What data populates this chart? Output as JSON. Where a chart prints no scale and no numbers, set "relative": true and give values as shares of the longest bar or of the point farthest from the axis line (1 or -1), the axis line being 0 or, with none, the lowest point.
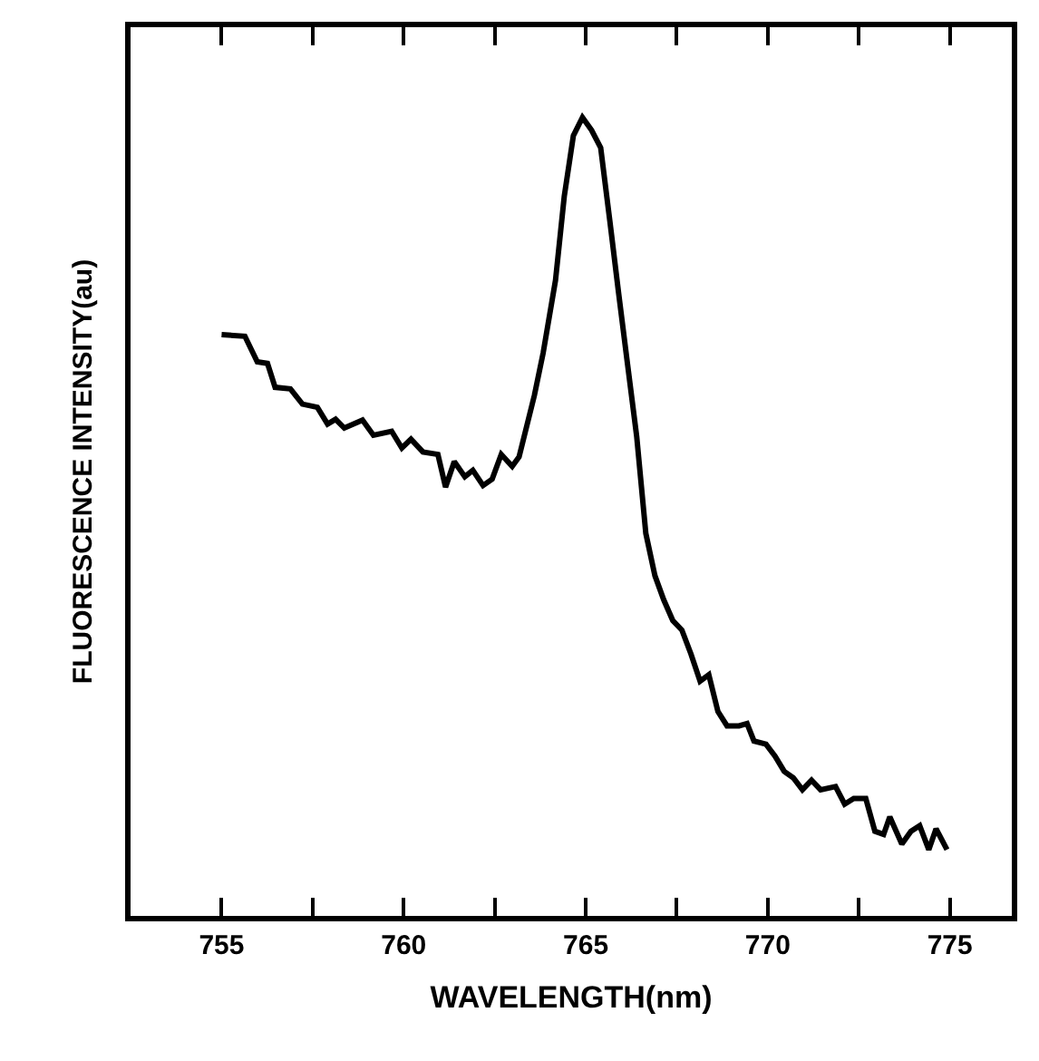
{
  "chart_data": {
    "type": "line",
    "xlabel": "WAVELENGTH(nm)",
    "ylabel": "FLUORESCENCE INTENSITY(au)",
    "relative": true,
    "xlim": [
      752.5,
      776.7
    ],
    "xticks": [
      755,
      {
        "value": 757.5,
        "label": null
      },
      760,
      {
        "value": 762.5,
        "label": null
      },
      765,
      {
        "value": 767.5,
        "label": null
      },
      770,
      {
        "value": 772.5,
        "label": null
      },
      775
    ],
    "marker": "none",
    "line_style": "solid",
    "series": [
      {
        "color": "#000000",
        "x": [
          755.0,
          755.64,
          755.98,
          756.26,
          756.47,
          756.89,
          757.22,
          757.63,
          757.91,
          758.13,
          758.37,
          758.87,
          759.17,
          759.67,
          759.95,
          760.2,
          760.53,
          760.94,
          761.15,
          761.39,
          761.68,
          761.9,
          762.18,
          762.43,
          762.68,
          762.98,
          763.17,
          763.59,
          763.83,
          764.17,
          764.41,
          764.66,
          764.91,
          765.16,
          765.41,
          765.66,
          765.9,
          766.15,
          766.4,
          766.65,
          766.9,
          767.14,
          767.39,
          767.64,
          767.89,
          768.14,
          768.38,
          768.63,
          768.88,
          769.21,
          769.43,
          769.62,
          769.95,
          770.2,
          770.45,
          770.7,
          770.95,
          771.2,
          771.45,
          771.86,
          772.11,
          772.36,
          772.69,
          772.94,
          773.18,
          773.35,
          773.68,
          773.93,
          774.17,
          774.42,
          774.62,
          774.92
        ],
        "values": [
          0.728,
          0.726,
          0.694,
          0.692,
          0.662,
          0.66,
          0.641,
          0.637,
          0.616,
          0.622,
          0.611,
          0.621,
          0.602,
          0.607,
          0.586,
          0.597,
          0.581,
          0.578,
          0.537,
          0.569,
          0.55,
          0.558,
          0.539,
          0.547,
          0.578,
          0.563,
          0.575,
          0.652,
          0.705,
          0.796,
          0.901,
          0.977,
          1.0,
          0.984,
          0.962,
          0.871,
          0.781,
          0.69,
          0.6,
          0.479,
          0.426,
          0.396,
          0.37,
          0.358,
          0.328,
          0.294,
          0.302,
          0.256,
          0.238,
          0.238,
          0.241,
          0.219,
          0.215,
          0.2,
          0.181,
          0.173,
          0.158,
          0.17,
          0.158,
          0.162,
          0.14,
          0.147,
          0.147,
          0.106,
          0.102,
          0.124,
          0.09,
          0.106,
          0.113,
          0.083,
          0.109,
          0.083
        ]
      }
    ]
  }
}
